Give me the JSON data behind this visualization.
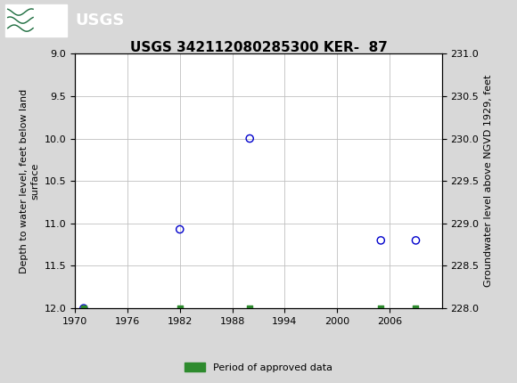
{
  "title": "USGS 342112080285300 KER-  87",
  "ylabel_left": "Depth to water level, feet below land\nsurface",
  "ylabel_right": "Groundwater level above NGVD 1929, feet",
  "scatter_x": [
    1971,
    1982,
    1990,
    2005,
    2009
  ],
  "scatter_y": [
    12.0,
    11.07,
    10.0,
    11.2,
    11.2
  ],
  "green_squares_x": [
    1971,
    1982,
    1990,
    2005,
    2009
  ],
  "green_squares_y": [
    12.0,
    12.0,
    12.0,
    12.0,
    12.0
  ],
  "xlim": [
    1970,
    2012
  ],
  "ylim_left_top": 9.0,
  "ylim_left_bottom": 12.0,
  "ylim_right_top": 231.0,
  "ylim_right_bottom": 228.0,
  "xticks": [
    1970,
    1976,
    1982,
    1988,
    1994,
    2000,
    2006
  ],
  "yticks_left": [
    9.0,
    9.5,
    10.0,
    10.5,
    11.0,
    11.5,
    12.0
  ],
  "yticks_right": [
    231.0,
    230.5,
    230.0,
    229.5,
    229.0,
    228.5,
    228.0
  ],
  "header_bg": "#1a6b3c",
  "scatter_color": "#0000cc",
  "green_color": "#2e8b2e",
  "legend_label": "Period of approved data",
  "fig_bg": "#d8d8d8",
  "plot_bg": "#ffffff",
  "grid_color": "#c0c0c0",
  "title_fontsize": 11,
  "tick_fontsize": 8,
  "label_fontsize": 8
}
